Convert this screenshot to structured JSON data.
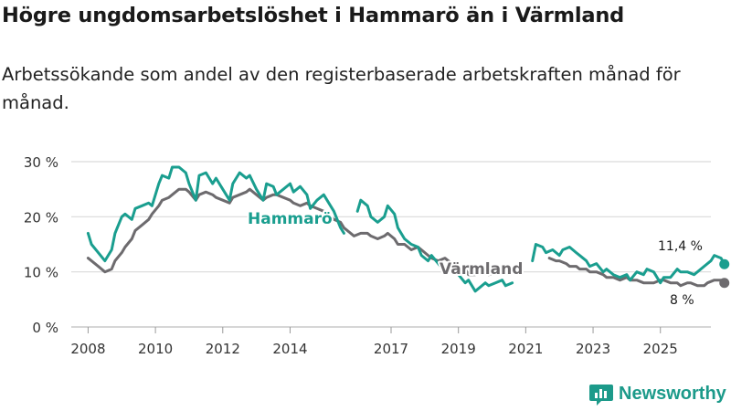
{
  "title": "Högre ungdomsarbetslöshet i Hammarö än i Värmland",
  "subtitle": "Arbetssökande som andel av den registerbaserade arbetskraften månad för månad.",
  "brand": "Newsworthy",
  "colors": {
    "hammaro": "#1a9e8f",
    "varmland": "#6d6b6e",
    "grid": "#d9d9d9",
    "text": "#333333",
    "brand": "#1c9a8a"
  },
  "chart_data": {
    "type": "line",
    "title": "Högre ungdomsarbetslöshet i Hammarö än i Värmland",
    "xlabel": "",
    "ylabel": "",
    "x_range": [
      2007.5,
      2026.5
    ],
    "ylim": [
      0,
      30
    ],
    "y_ticks": [
      0,
      10,
      20,
      30
    ],
    "y_tick_labels": [
      "0 %",
      "10 %",
      "20 %",
      "30 %"
    ],
    "x_ticks": [
      2008,
      2010,
      2012,
      2014,
      2017,
      2019,
      2021,
      2023,
      2025
    ],
    "x_tick_labels": [
      "2008",
      "2010",
      "2012",
      "2014",
      "2017",
      "2019",
      "2021",
      "2023",
      "2025"
    ],
    "grid": true,
    "series": [
      {
        "name": "Hammarö",
        "label_text": "Hammarö",
        "end_label": "11,4 %",
        "segments": [
          [
            [
              2008.0,
              17
            ],
            [
              2008.1,
              15
            ],
            [
              2008.3,
              13.5
            ],
            [
              2008.5,
              12
            ],
            [
              2008.7,
              14
            ],
            [
              2008.8,
              17
            ],
            [
              2009.0,
              20
            ],
            [
              2009.1,
              20.5
            ],
            [
              2009.3,
              19.5
            ],
            [
              2009.4,
              21.5
            ],
            [
              2009.6,
              22
            ],
            [
              2009.8,
              22.5
            ],
            [
              2009.9,
              22
            ],
            [
              2010.1,
              26
            ],
            [
              2010.2,
              27.5
            ],
            [
              2010.4,
              27
            ],
            [
              2010.5,
              29
            ],
            [
              2010.7,
              29
            ],
            [
              2010.9,
              28
            ],
            [
              2011.0,
              26
            ],
            [
              2011.2,
              23
            ],
            [
              2011.3,
              27.5
            ],
            [
              2011.5,
              28
            ],
            [
              2011.7,
              26
            ],
            [
              2011.8,
              27
            ],
            [
              2012.0,
              25
            ],
            [
              2012.2,
              23
            ],
            [
              2012.3,
              26
            ],
            [
              2012.5,
              28
            ],
            [
              2012.7,
              27
            ],
            [
              2012.8,
              27.5
            ],
            [
              2013.0,
              25
            ],
            [
              2013.2,
              23
            ],
            [
              2013.3,
              26
            ],
            [
              2013.5,
              25.5
            ],
            [
              2013.6,
              24
            ],
            [
              2013.8,
              25
            ],
            [
              2014.0,
              26
            ],
            [
              2014.1,
              24.5
            ],
            [
              2014.3,
              25.5
            ],
            [
              2014.5,
              24
            ],
            [
              2014.6,
              21.5
            ],
            [
              2014.8,
              23
            ],
            [
              2015.0,
              24
            ],
            [
              2015.2,
              22
            ],
            [
              2015.3,
              21
            ],
            [
              2015.5,
              18
            ],
            [
              2015.6,
              17
            ]
          ],
          [
            [
              2016.0,
              21
            ],
            [
              2016.1,
              23
            ],
            [
              2016.3,
              22
            ],
            [
              2016.4,
              20
            ],
            [
              2016.6,
              19
            ],
            [
              2016.8,
              20
            ],
            [
              2016.9,
              22
            ],
            [
              2017.1,
              20.5
            ],
            [
              2017.2,
              18
            ],
            [
              2017.4,
              16
            ],
            [
              2017.6,
              15
            ],
            [
              2017.8,
              14.5
            ],
            [
              2017.9,
              13
            ],
            [
              2018.1,
              12
            ],
            [
              2018.2,
              13
            ],
            [
              2018.4,
              11.5
            ],
            [
              2018.6,
              10
            ],
            [
              2018.7,
              10.5
            ],
            [
              2018.9,
              11
            ],
            [
              2019.0,
              9.5
            ],
            [
              2019.2,
              8
            ],
            [
              2019.3,
              8.5
            ],
            [
              2019.5,
              6.5
            ],
            [
              2019.6,
              7
            ],
            [
              2019.8,
              8
            ],
            [
              2019.9,
              7.5
            ],
            [
              2020.1,
              8
            ],
            [
              2020.3,
              8.5
            ],
            [
              2020.4,
              7.5
            ],
            [
              2020.6,
              8
            ]
          ],
          [
            [
              2021.2,
              12
            ],
            [
              2021.3,
              15
            ],
            [
              2021.5,
              14.5
            ],
            [
              2021.6,
              13.5
            ],
            [
              2021.8,
              14
            ],
            [
              2022.0,
              13
            ],
            [
              2022.1,
              14
            ],
            [
              2022.3,
              14.5
            ],
            [
              2022.5,
              13.5
            ],
            [
              2022.6,
              13
            ],
            [
              2022.8,
              12
            ],
            [
              2022.9,
              11
            ],
            [
              2023.1,
              11.5
            ],
            [
              2023.3,
              10
            ],
            [
              2023.4,
              10.5
            ],
            [
              2023.6,
              9.5
            ],
            [
              2023.8,
              9
            ],
            [
              2024.0,
              9.5
            ],
            [
              2024.1,
              8.5
            ],
            [
              2024.3,
              10
            ],
            [
              2024.5,
              9.5
            ],
            [
              2024.6,
              10.5
            ],
            [
              2024.8,
              10
            ],
            [
              2025.0,
              8
            ],
            [
              2025.1,
              9
            ],
            [
              2025.3,
              9
            ],
            [
              2025.5,
              10.5
            ],
            [
              2025.6,
              10
            ],
            [
              2025.8,
              10
            ],
            [
              2026.0,
              9.5
            ],
            [
              2026.1,
              10
            ],
            [
              2026.3,
              11
            ],
            [
              2026.5,
              12
            ],
            [
              2026.6,
              13
            ],
            [
              2026.8,
              12.5
            ],
            [
              2026.9,
              11.4
            ]
          ]
        ]
      },
      {
        "name": "Värmland",
        "label_text": "Värmland",
        "end_label": "8 %",
        "segments": [
          [
            [
              2008.0,
              12.5
            ],
            [
              2008.1,
              12
            ],
            [
              2008.3,
              11
            ],
            [
              2008.5,
              10
            ],
            [
              2008.7,
              10.5
            ],
            [
              2008.8,
              12
            ],
            [
              2009.0,
              13.5
            ],
            [
              2009.1,
              14.5
            ],
            [
              2009.3,
              16
            ],
            [
              2009.4,
              17.5
            ],
            [
              2009.6,
              18.5
            ],
            [
              2009.8,
              19.5
            ],
            [
              2009.9,
              20.5
            ],
            [
              2010.1,
              22
            ],
            [
              2010.2,
              23
            ],
            [
              2010.4,
              23.5
            ],
            [
              2010.5,
              24
            ],
            [
              2010.7,
              25
            ],
            [
              2010.9,
              25
            ],
            [
              2011.0,
              24.5
            ],
            [
              2011.2,
              23
            ],
            [
              2011.3,
              24
            ],
            [
              2011.5,
              24.5
            ],
            [
              2011.7,
              24
            ],
            [
              2011.8,
              23.5
            ],
            [
              2012.0,
              23
            ],
            [
              2012.2,
              22.5
            ],
            [
              2012.3,
              23.5
            ],
            [
              2012.5,
              24
            ],
            [
              2012.7,
              24.5
            ],
            [
              2012.8,
              25
            ],
            [
              2013.0,
              24
            ],
            [
              2013.2,
              23
            ],
            [
              2013.3,
              23.5
            ],
            [
              2013.5,
              24
            ],
            [
              2013.6,
              24
            ],
            [
              2013.8,
              23.5
            ],
            [
              2014.0,
              23
            ],
            [
              2014.1,
              22.5
            ],
            [
              2014.3,
              22
            ],
            [
              2014.5,
              22.5
            ],
            [
              2014.6,
              22
            ],
            [
              2014.8,
              21.5
            ],
            [
              2015.0,
              21
            ],
            [
              2015.2,
              20
            ],
            [
              2015.3,
              19.5
            ],
            [
              2015.5,
              19
            ],
            [
              2015.6,
              18
            ],
            [
              2015.8,
              17
            ],
            [
              2015.9,
              16.5
            ],
            [
              2016.1,
              17
            ],
            [
              2016.3,
              17
            ],
            [
              2016.4,
              16.5
            ],
            [
              2016.6,
              16
            ],
            [
              2016.8,
              16.5
            ],
            [
              2016.9,
              17
            ],
            [
              2017.1,
              16
            ],
            [
              2017.2,
              15
            ],
            [
              2017.4,
              15
            ],
            [
              2017.6,
              14
            ],
            [
              2017.8,
              14.5
            ],
            [
              2017.9,
              14
            ],
            [
              2018.1,
              13
            ],
            [
              2018.2,
              12.5
            ],
            [
              2018.4,
              12
            ],
            [
              2018.6,
              12.5
            ],
            [
              2018.7,
              12
            ],
            [
              2018.9,
              11
            ],
            [
              2019.0,
              11
            ],
            [
              2019.2,
              10.5
            ],
            [
              2019.3,
              9.5
            ],
            [
              2019.5,
              9.5
            ],
            [
              2019.6,
              10
            ],
            [
              2019.8,
              10
            ],
            [
              2019.9,
              9.5
            ],
            [
              2020.1,
              10
            ],
            [
              2020.3,
              10.5
            ],
            [
              2020.4,
              10
            ]
          ],
          [
            [
              2021.7,
              12.5
            ],
            [
              2021.9,
              12
            ],
            [
              2022.0,
              12
            ],
            [
              2022.2,
              11.5
            ],
            [
              2022.3,
              11
            ],
            [
              2022.5,
              11
            ],
            [
              2022.6,
              10.5
            ],
            [
              2022.8,
              10.5
            ],
            [
              2022.9,
              10
            ],
            [
              2023.1,
              10
            ],
            [
              2023.3,
              9.5
            ],
            [
              2023.4,
              9
            ],
            [
              2023.6,
              9
            ],
            [
              2023.8,
              8.5
            ],
            [
              2024.0,
              9
            ],
            [
              2024.1,
              8.5
            ],
            [
              2024.3,
              8.5
            ],
            [
              2024.5,
              8
            ],
            [
              2024.6,
              8
            ],
            [
              2024.8,
              8
            ],
            [
              2025.0,
              8.5
            ],
            [
              2025.1,
              8.5
            ],
            [
              2025.3,
              8
            ],
            [
              2025.5,
              8
            ],
            [
              2025.6,
              7.5
            ],
            [
              2025.8,
              8
            ],
            [
              2025.9,
              8
            ],
            [
              2026.1,
              7.5
            ],
            [
              2026.3,
              7.5
            ],
            [
              2026.4,
              8
            ],
            [
              2026.6,
              8.5
            ],
            [
              2026.8,
              8.5
            ],
            [
              2026.9,
              8
            ]
          ]
        ]
      }
    ]
  }
}
